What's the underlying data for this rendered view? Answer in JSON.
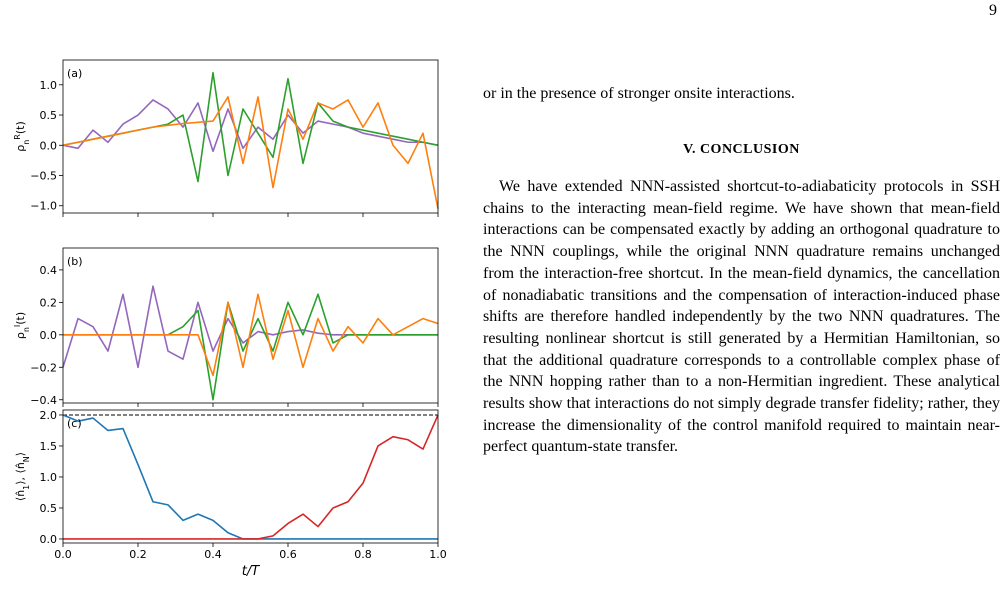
{
  "page_number": "9",
  "text_column": {
    "lead_line": "or in the presence of stronger onsite interactions.",
    "heading": "V.   CONCLUSION",
    "paragraph": "We have extended NNN-assisted shortcut-to-adiabaticity protocols in SSH chains to the interacting mean-field regime. We have shown that mean-field interactions can be compensated exactly by adding an orthogonal quadrature to the NNN couplings, while the original NNN quadrature remains unchanged from the interaction-free shortcut. In the mean-field dynamics, the cancellation of nonadiabatic transitions and the compensation of interaction-induced phase shifts are therefore handled independently by the two NNN quadratures. The resulting nonlinear shortcut is still generated by a Hermitian Hamiltonian, so that the additional quadrature corresponds to a controllable complex phase of the NNN hopping rather than to a non-Hermitian ingredient. These analytical results show that interactions do not simply degrade transfer fidelity; rather, they increase the dimensionality of the control manifold required to maintain near-perfect quantum-state transfer."
  },
  "chart_data": [
    {
      "type": "line",
      "panel_label": "(a)",
      "ylabel": [
        {
          "t": "ρ"
        },
        {
          "t": "n",
          "shift": "sub"
        },
        {
          "t": "R",
          "shift": "sup"
        },
        {
          "t": "(t)"
        }
      ],
      "xlim": [
        0,
        1
      ],
      "ylim": [
        -1.12,
        1.41
      ],
      "yticks": [
        {
          "value": 1.0,
          "label": "1.0"
        },
        {
          "value": 0.5,
          "label": "0.5"
        },
        {
          "value": 0.0,
          "label": "0.0"
        },
        {
          "value": -0.5,
          "label": "−0.5"
        },
        {
          "value": -1.0,
          "label": "−1.0"
        }
      ],
      "x": [
        0,
        0.04,
        0.08,
        0.12,
        0.16,
        0.2,
        0.24,
        0.28,
        0.32,
        0.36,
        0.4,
        0.44,
        0.48,
        0.52,
        0.56,
        0.6,
        0.64,
        0.68,
        0.72,
        0.76,
        0.8,
        0.84,
        0.88,
        0.92,
        0.96,
        1.0
      ],
      "series": [
        {
          "color": "#9467bd",
          "values": [
            0,
            -0.05,
            0.25,
            0.05,
            0.35,
            0.5,
            0.75,
            0.6,
            0.3,
            0.7,
            -0.1,
            0.6,
            -0.05,
            0.3,
            0.1,
            0.5,
            0.2,
            0.4,
            0.35,
            0.3,
            0.2,
            0.15,
            0.1,
            0.05,
            0.05,
            0
          ]
        },
        {
          "color": "#2ca02c",
          "values": [
            0,
            0.05,
            0.1,
            0.15,
            0.2,
            0.25,
            0.3,
            0.35,
            0.5,
            -0.6,
            1.2,
            -0.5,
            0.6,
            0.2,
            -0.2,
            1.1,
            -0.3,
            0.7,
            0.4,
            0.3,
            0.25,
            0.2,
            0.15,
            0.1,
            0.05,
            0
          ]
        },
        {
          "color": "#ff7f0e",
          "values": [
            0,
            0.05,
            0.1,
            0.15,
            0.2,
            0.25,
            0.3,
            0.33,
            0.36,
            0.38,
            0.4,
            0.8,
            -0.3,
            0.8,
            -0.7,
            0.6,
            0.1,
            0.7,
            0.6,
            0.75,
            0.3,
            0.7,
            0,
            -0.3,
            0.2,
            -1.05
          ]
        }
      ]
    },
    {
      "type": "line",
      "panel_label": "(b)",
      "ylabel": [
        {
          "t": "ρ"
        },
        {
          "t": "n",
          "shift": "sub"
        },
        {
          "t": "I",
          "shift": "sup"
        },
        {
          "t": "(t)"
        }
      ],
      "xlim": [
        0,
        1
      ],
      "ylim": [
        -0.42,
        0.535
      ],
      "yticks": [
        {
          "value": 0.4,
          "label": "0.4"
        },
        {
          "value": 0.2,
          "label": "0.2"
        },
        {
          "value": 0.0,
          "label": "0.0"
        },
        {
          "value": -0.2,
          "label": "−0.2"
        },
        {
          "value": -0.4,
          "label": "−0.4"
        }
      ],
      "x": [
        0,
        0.04,
        0.08,
        0.12,
        0.16,
        0.2,
        0.24,
        0.28,
        0.32,
        0.36,
        0.4,
        0.44,
        0.48,
        0.52,
        0.56,
        0.6,
        0.64,
        0.68,
        0.72,
        0.76,
        0.8,
        0.84,
        0.88,
        0.92,
        0.96,
        1.0
      ],
      "series": [
        {
          "color": "#9467bd",
          "values": [
            -0.2,
            0.1,
            0.05,
            -0.1,
            0.25,
            -0.2,
            0.3,
            -0.1,
            -0.15,
            0.2,
            -0.1,
            0.1,
            -0.05,
            0.02,
            0,
            0.02,
            0.03,
            0.01,
            0,
            0,
            0,
            0,
            0,
            0,
            0,
            0
          ]
        },
        {
          "color": "#2ca02c",
          "values": [
            0,
            0,
            0,
            0,
            0,
            0,
            0,
            0,
            0.05,
            0.15,
            -0.4,
            0.2,
            -0.1,
            0.1,
            -0.1,
            0.2,
            0,
            0.25,
            -0.05,
            0,
            0,
            0,
            0,
            0,
            0,
            0
          ]
        },
        {
          "color": "#ff7f0e",
          "values": [
            0,
            0,
            0,
            0,
            0,
            0,
            0,
            0,
            0,
            0,
            -0.25,
            0.2,
            -0.2,
            0.25,
            -0.15,
            0.15,
            -0.2,
            0.1,
            -0.1,
            0.05,
            -0.05,
            0.1,
            0,
            0.05,
            0.1,
            0.07
          ]
        }
      ]
    },
    {
      "type": "line",
      "panel_label": "(c)",
      "ylabel": [
        {
          "t": "⟨n̂"
        },
        {
          "t": "1",
          "shift": "sub"
        },
        {
          "t": "⟩, ⟨n̂"
        },
        {
          "t": "N",
          "shift": "sub"
        },
        {
          "t": "⟩"
        }
      ],
      "xlabel": "t/T",
      "xlim": [
        0,
        1
      ],
      "ylim": [
        -0.065,
        2.08
      ],
      "xticks": [
        {
          "value": 0.0,
          "label": "0.0"
        },
        {
          "value": 0.2,
          "label": "0.2"
        },
        {
          "value": 0.4,
          "label": "0.4"
        },
        {
          "value": 0.6,
          "label": "0.6"
        },
        {
          "value": 0.8,
          "label": "0.8"
        },
        {
          "value": 1.0,
          "label": "1.0"
        }
      ],
      "yticks": [
        {
          "value": 2.0,
          "label": "2.0"
        },
        {
          "value": 1.5,
          "label": "1.5"
        },
        {
          "value": 1.0,
          "label": "1.0"
        },
        {
          "value": 0.5,
          "label": "0.5"
        },
        {
          "value": 0.0,
          "label": "0.0"
        }
      ],
      "hline": 2.0,
      "x": [
        0,
        0.04,
        0.08,
        0.12,
        0.16,
        0.2,
        0.24,
        0.28,
        0.32,
        0.36,
        0.4,
        0.44,
        0.48,
        0.52,
        0.56,
        0.6,
        0.64,
        0.68,
        0.72,
        0.76,
        0.8,
        0.84,
        0.88,
        0.92,
        0.96,
        1.0
      ],
      "series": [
        {
          "color": "#1f77b4",
          "values": [
            2.0,
            1.9,
            1.95,
            1.75,
            1.78,
            1.2,
            0.6,
            0.55,
            0.3,
            0.4,
            0.3,
            0.1,
            0,
            0,
            0,
            0,
            0,
            0,
            0,
            0,
            0,
            0,
            0,
            0,
            0,
            0
          ]
        },
        {
          "color": "#d62728",
          "values": [
            0,
            0,
            0,
            0,
            0,
            0,
            0,
            0,
            0,
            0,
            0,
            0,
            0,
            0,
            0.05,
            0.25,
            0.4,
            0.2,
            0.5,
            0.6,
            0.9,
            1.5,
            1.65,
            1.6,
            1.45,
            2.0
          ]
        }
      ]
    }
  ]
}
